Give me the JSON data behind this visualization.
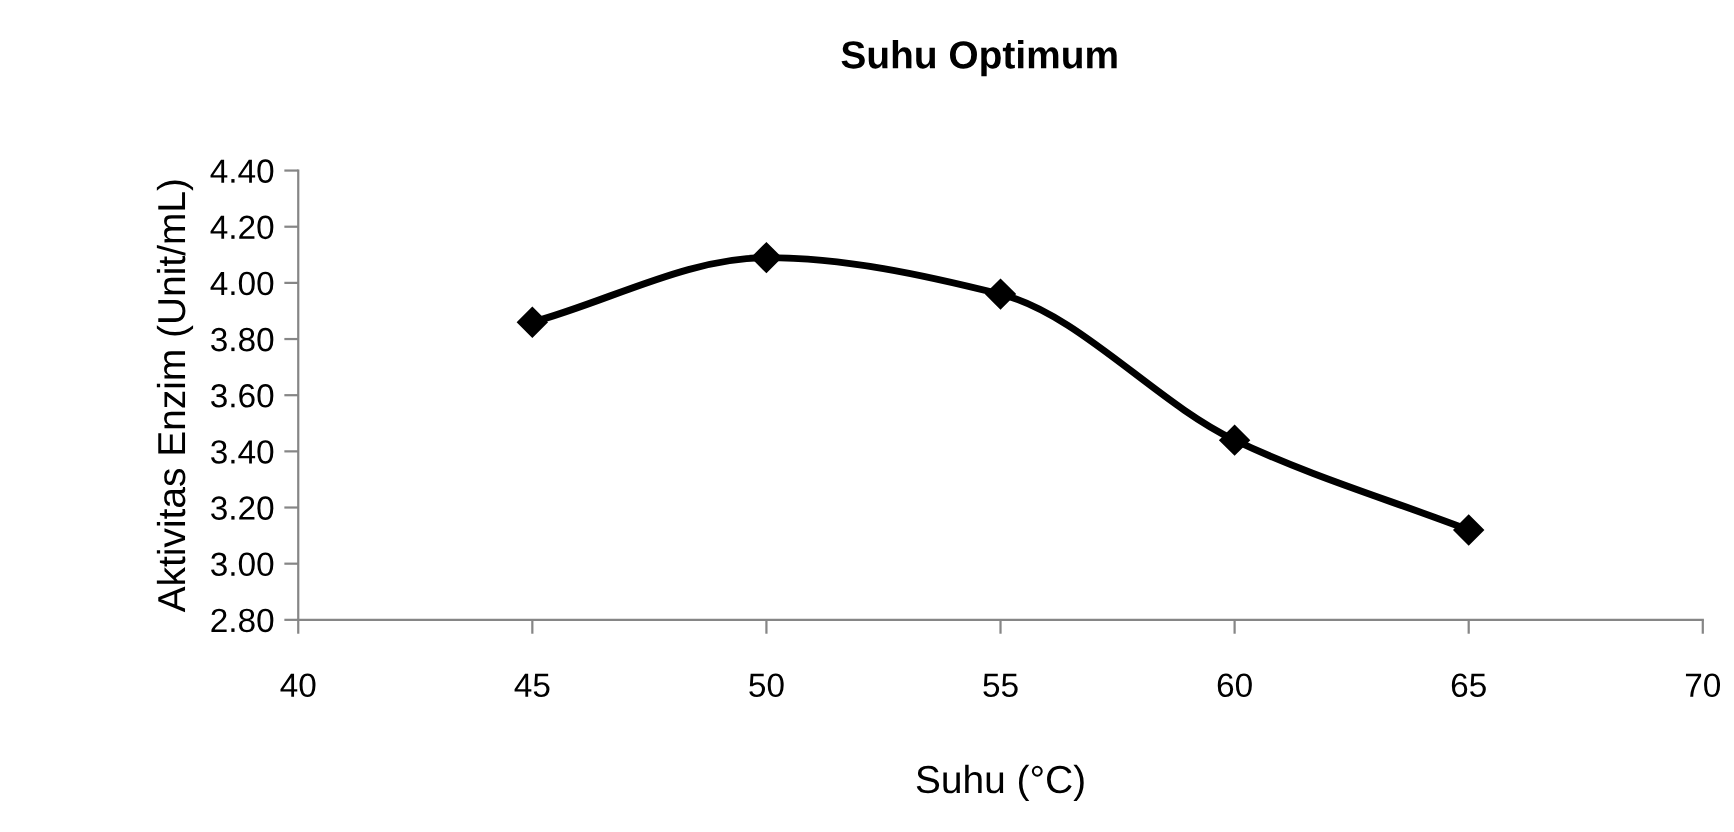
{
  "chart_data": {
    "type": "line",
    "title": "Suhu Optimum",
    "xlabel": "Suhu (°C)",
    "ylabel": "Aktivitas Enzim (Unit/mL)",
    "x": [
      45,
      50,
      55,
      60,
      65
    ],
    "series": [
      {
        "color": "#000000",
        "values": [
          3.86,
          4.09,
          3.96,
          3.44,
          3.12
        ]
      }
    ],
    "marker": "diamond",
    "line_style": "solid",
    "grid": false,
    "legend": false,
    "xlim": [
      40,
      70
    ],
    "xticks": [
      40,
      45,
      50,
      55,
      60,
      65,
      70
    ],
    "ylim": [
      2.8,
      4.4
    ],
    "yticks": [
      {
        "value": 2.8,
        "label": "2.80"
      },
      {
        "value": 3.0,
        "label": "3.00"
      },
      {
        "value": 3.2,
        "label": "3.20"
      },
      {
        "value": 3.4,
        "label": "3.40"
      },
      {
        "value": 3.6,
        "label": "3.60"
      },
      {
        "value": 3.8,
        "label": "3.80"
      },
      {
        "value": 4.0,
        "label": "4.00"
      },
      {
        "value": 4.2,
        "label": "4.20"
      },
      {
        "value": 4.4,
        "label": "4.40"
      }
    ]
  }
}
